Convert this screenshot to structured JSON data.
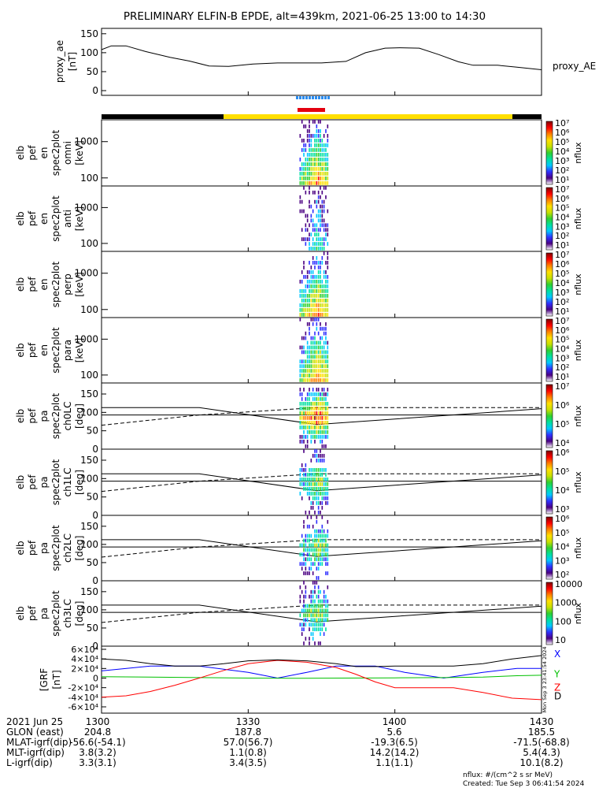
{
  "title": "PRELIMINARY ELFIN-B EPDE, alt=439km, 2021-06-25 13:00 to 14:30",
  "colors": {
    "blue_marker": "#2a8cf0",
    "red_marker": "#e3000f",
    "bar_black": "#000000",
    "bar_yellow": "#ffdf00",
    "bx": "#0000ff",
    "by": "#00c000",
    "bz": "#ff0000",
    "total": "#000000"
  },
  "panels": [
    {
      "label": [
        "proxy_ae",
        "[nT]"
      ],
      "right_label": "proxy_AE"
    },
    {
      "label": [
        "elb",
        "pef",
        "en",
        "spec2plot",
        "omni",
        "[keV]"
      ],
      "cb_label": "nflux",
      "cb_ticks": [
        "10⁷",
        "10⁶",
        "10⁵",
        "10⁴",
        "10³",
        "10²",
        "10¹"
      ]
    },
    {
      "label": [
        "elb",
        "pef",
        "en",
        "spec2plot",
        "anti",
        "[keV]"
      ],
      "cb_label": "nflux",
      "cb_ticks": [
        "10⁷",
        "10⁶",
        "10⁵",
        "10⁴",
        "10³",
        "10²",
        "10¹"
      ]
    },
    {
      "label": [
        "elb",
        "pef",
        "en",
        "spec2plot",
        "perp",
        "[keV]"
      ],
      "cb_label": "nflux",
      "cb_ticks": [
        "10⁷",
        "10⁶",
        "10⁵",
        "10⁴",
        "10³",
        "10²",
        "10¹"
      ]
    },
    {
      "label": [
        "elb",
        "pef",
        "en",
        "spec2plot",
        "para",
        "[keV]"
      ],
      "cb_label": "nflux",
      "cb_ticks": [
        "10⁷",
        "10⁶",
        "10⁵",
        "10⁴",
        "10³",
        "10²",
        "10¹"
      ]
    },
    {
      "label": [
        "elb",
        "pef",
        "pa",
        "spec2plot",
        "ch0LC",
        "[deg]"
      ],
      "cb_label": "nflux",
      "cb_ticks": [
        "10⁷",
        "10⁶",
        "10⁵",
        "10⁴"
      ]
    },
    {
      "label": [
        "elb",
        "pef",
        "pa",
        "spec2plot",
        "ch1LC",
        "[deg]"
      ],
      "cb_label": "nflux",
      "cb_ticks": [
        "10⁶",
        "10⁵",
        "10⁴",
        "10³"
      ]
    },
    {
      "label": [
        "elb",
        "pef",
        "pa",
        "spec2plot",
        "ch2LC",
        "[deg]"
      ],
      "cb_label": "nflux",
      "cb_ticks": [
        "10⁶",
        "10⁵",
        "10⁴",
        "10³",
        "10²"
      ]
    },
    {
      "label": [
        "elb",
        "pef",
        "pa",
        "spec2plot",
        "ch3LC",
        "[deg]"
      ],
      "cb_label": "nflux",
      "cb_ticks": [
        "10000",
        "1000",
        "100",
        "10"
      ]
    },
    {
      "label": [
        "[GRF",
        "[nT]"
      ],
      "legend": [
        "X",
        "Y",
        "Z",
        "D"
      ],
      "side_text": "Mon Sep  3 23:41:54 2024"
    }
  ],
  "footer": {
    "rows": [
      {
        "label": "2021 Jun 25",
        "values": [
          "1300",
          "1330",
          "1400",
          "1430"
        ]
      },
      {
        "label": "GLON (east)",
        "values": [
          "204.8",
          "187.8",
          "5.6",
          "185.5"
        ]
      },
      {
        "label": "MLAT-igrf(dip)",
        "values": [
          "-56.6(-54.1)",
          "57.0(56.7)",
          "-19.3(6.5)",
          "-71.5(-68.8)"
        ]
      },
      {
        "label": "MLT-igrf(dip)",
        "values": [
          "3.8(3.2)",
          "1.1(0.8)",
          "14.2(14.2)",
          "5.4(4.3)"
        ]
      },
      {
        "label": "L-igrf(dip)",
        "values": [
          "3.3(3.1)",
          "3.4(3.5)",
          "1.1(1.1)",
          "10.1(8.2)"
        ]
      }
    ],
    "units_note": "nflux: #/(cm^2 s sr MeV)",
    "created": "Created: Tue Sep  3 06:41:54 2024"
  },
  "chart_data": [
    {
      "type": "line",
      "title": "PRELIMINARY ELFIN-B EPDE, alt=439km, 2021-06-25 13:00 to 14:30",
      "ylabel": "proxy_ae [nT]",
      "ylim": [
        0,
        160
      ],
      "yticks": [
        0,
        50,
        100,
        150
      ],
      "xlim": [
        0,
        90
      ],
      "series": [
        {
          "name": "proxy_AE",
          "x": [
            0,
            2,
            5,
            9,
            14,
            18,
            22,
            26,
            31,
            36,
            41,
            45,
            50,
            54,
            58,
            61,
            65,
            69,
            73,
            76,
            81,
            85,
            90
          ],
          "y": [
            108,
            118,
            118,
            103,
            88,
            78,
            65,
            64,
            70,
            73,
            73,
            73,
            77,
            100,
            112,
            113,
            112,
            95,
            76,
            67,
            67,
            62,
            55
          ]
        }
      ]
    },
    {
      "type": "heatmap",
      "ylabel": "omni [keV]",
      "y_scale": "log",
      "yticks": [
        100,
        1000
      ],
      "zscale": "log",
      "zlim": [
        10.0,
        10000000.0
      ],
      "x_active": [
        40.5,
        46.5
      ]
    },
    {
      "type": "heatmap",
      "ylabel": "anti [keV]",
      "y_scale": "log",
      "yticks": [
        100,
        1000
      ],
      "zscale": "log",
      "zlim": [
        10.0,
        10000000.0
      ],
      "x_active": [
        40.5,
        46.5
      ]
    },
    {
      "type": "heatmap",
      "ylabel": "perp [keV]",
      "y_scale": "log",
      "yticks": [
        100,
        1000
      ],
      "zscale": "log",
      "zlim": [
        10.0,
        10000000.0
      ],
      "x_active": [
        40.5,
        46.5
      ]
    },
    {
      "type": "heatmap",
      "ylabel": "para [keV]",
      "y_scale": "log",
      "yticks": [
        100,
        1000
      ],
      "zscale": "log",
      "zlim": [
        10.0,
        10000000.0
      ],
      "x_active": [
        40.5,
        46.5
      ]
    },
    {
      "type": "heatmap",
      "ylabel": "ch0LC [deg]",
      "ylim": [
        0,
        180
      ],
      "yticks": [
        0,
        50,
        100,
        150
      ],
      "zscale": "log",
      "zlim": [
        1000.0,
        10000000.0
      ],
      "x_active": [
        40.5,
        46.5
      ]
    },
    {
      "type": "heatmap",
      "ylabel": "ch1LC [deg]",
      "ylim": [
        0,
        180
      ],
      "yticks": [
        0,
        50,
        100,
        150
      ],
      "zscale": "log",
      "zlim": [
        1000.0,
        1000000.0
      ],
      "x_active": [
        40.5,
        46.5
      ]
    },
    {
      "type": "heatmap",
      "ylabel": "ch2LC [deg]",
      "ylim": [
        0,
        180
      ],
      "yticks": [
        0,
        50,
        100,
        150
      ],
      "zscale": "log",
      "zlim": [
        100.0,
        1000000.0
      ],
      "x_active": [
        40.5,
        46.5
      ]
    },
    {
      "type": "heatmap",
      "ylabel": "ch3LC [deg]",
      "ylim": [
        0,
        180
      ],
      "yticks": [
        0,
        50,
        100,
        150
      ],
      "zscale": "log",
      "zlim": [
        10.0,
        10000.0
      ],
      "x_active": [
        40.5,
        46.5
      ]
    },
    {
      "type": "line",
      "ylabel": "[GRF [nT]",
      "ylim": [
        -60000,
        60000
      ],
      "yticks": [
        "-6×10⁴",
        "-4×10⁴",
        "-2×10⁴",
        "0",
        "2×10⁴",
        "4×10⁴",
        "6×10⁴"
      ],
      "ytick_values": [
        -60000,
        -40000,
        -20000,
        0,
        20000,
        40000,
        60000
      ],
      "xlim": [
        0,
        90
      ],
      "series": [
        {
          "name": "X",
          "x": [
            0,
            10,
            20,
            30,
            36,
            42,
            48,
            56,
            62,
            70,
            78,
            85,
            90
          ],
          "y": [
            15000,
            25000,
            25000,
            12000,
            0,
            12000,
            25000,
            25000,
            12000,
            0,
            12000,
            20000,
            20000
          ]
        },
        {
          "name": "Y",
          "x": [
            0,
            10,
            20,
            30,
            40,
            50,
            60,
            70,
            78,
            85,
            90
          ],
          "y": [
            3000,
            2000,
            1000,
            0,
            -500,
            0,
            500,
            1000,
            2000,
            5000,
            6000
          ]
        },
        {
          "name": "Z",
          "x": [
            0,
            5,
            10,
            15,
            20,
            25,
            30,
            36,
            42,
            48,
            52,
            56,
            60,
            66,
            72,
            78,
            84,
            90
          ],
          "y": [
            -40000,
            -37000,
            -28000,
            -15000,
            0,
            16000,
            30000,
            37000,
            33000,
            22000,
            8000,
            -8000,
            -20000,
            -20000,
            -20000,
            -30000,
            -42000,
            -45000
          ]
        },
        {
          "name": "D",
          "x": [
            0,
            5,
            10,
            15,
            20,
            25,
            30,
            36,
            42,
            48,
            52,
            56,
            60,
            66,
            72,
            78,
            84,
            90
          ],
          "y": [
            40000,
            37000,
            30000,
            25000,
            25000,
            30000,
            36000,
            38000,
            36000,
            30000,
            24000,
            24000,
            25000,
            25000,
            25000,
            30000,
            40000,
            47000
          ]
        }
      ]
    }
  ]
}
